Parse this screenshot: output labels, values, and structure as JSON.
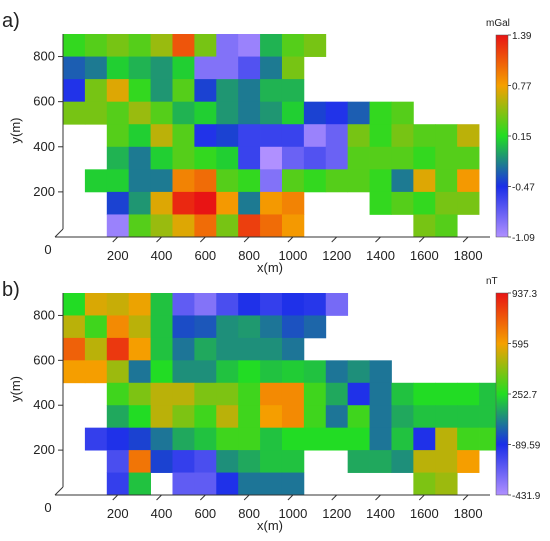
{
  "chart_data": [
    {
      "type": "heatmap",
      "panel_label": "a)",
      "xlabel": "x(m)",
      "ylabel": "y(m)",
      "origin_label": "0",
      "x_ticks": [
        200,
        400,
        600,
        800,
        1000,
        1200,
        1400,
        1600,
        1800
      ],
      "y_ticks": [
        200,
        400,
        600,
        800
      ],
      "xlim": [
        -50,
        1900
      ],
      "ylim": [
        0,
        900
      ],
      "cell_size": 100,
      "x_first_center": 0,
      "y_first_center": 850,
      "colorbar": {
        "unit": "mGal",
        "ticks": [
          "1.39",
          "0.77",
          "0.15",
          "-0.47",
          "-1.09"
        ],
        "min": -1.09,
        "max": 1.39
      },
      "rows": [
        [
          0.2,
          0.3,
          0.4,
          0.3,
          0.5,
          1.1,
          0.4,
          -0.9,
          -1.0,
          0.0,
          0.3,
          0.4
        ],
        [
          -0.3,
          -0.2,
          0.1,
          0.0,
          -0.1,
          0.1,
          -0.9,
          -0.9,
          -0.7,
          -0.2,
          0.4
        ],
        [
          -0.5,
          0.4,
          0.7,
          0.2,
          -0.1,
          0.3,
          -0.4,
          -0.1,
          -0.2,
          0.0,
          0.0
        ],
        [
          0.4,
          0.4,
          0.3,
          0.5,
          0.3,
          0.0,
          0.1,
          -0.1,
          -0.2,
          -0.1,
          0.1,
          -0.4,
          -0.5,
          -0.3,
          0.2,
          0.3
        ],
        [
          null,
          null,
          0.3,
          0.1,
          0.6,
          0.3,
          -0.5,
          -0.4,
          -0.6,
          -0.6,
          -0.6,
          -1.0,
          -0.8,
          0.4,
          0.2,
          0.4,
          0.3,
          0.3,
          0.6
        ],
        [
          null,
          null,
          0.0,
          -0.2,
          0.1,
          0.3,
          0.2,
          0.1,
          -0.6,
          -1.1,
          -0.8,
          -0.7,
          -0.8,
          0.3,
          0.3,
          0.3,
          0.2,
          0.3,
          0.3
        ],
        [
          null,
          0.1,
          0.1,
          -0.2,
          -0.2,
          0.9,
          1.0,
          0.3,
          0.2,
          -0.9,
          0.3,
          0.2,
          0.3,
          0.3,
          0.2,
          -0.2,
          0.7,
          0.3,
          0.8
        ],
        [
          null,
          null,
          -0.4,
          -0.1,
          0.7,
          1.3,
          1.4,
          0.8,
          -0.2,
          0.8,
          0.9,
          null,
          null,
          null,
          0.2,
          0.3,
          0.2,
          0.4,
          0.4
        ],
        [
          null,
          null,
          -1.0,
          0.3,
          0.5,
          0.7,
          1.0,
          0.4,
          1.2,
          1.0,
          0.8,
          null,
          null,
          null,
          null,
          null,
          0.4,
          0.3,
          null
        ]
      ]
    },
    {
      "type": "heatmap",
      "panel_label": "b)",
      "xlabel": "x(m)",
      "ylabel": "y(m)",
      "origin_label": "0",
      "x_ticks": [
        200,
        400,
        600,
        800,
        1000,
        1200,
        1400,
        1600,
        1800
      ],
      "y_ticks": [
        200,
        400,
        600,
        800
      ],
      "xlim": [
        -50,
        1900
      ],
      "ylim": [
        0,
        900
      ],
      "cell_size": 100,
      "x_first_center": 0,
      "y_first_center": 850,
      "colorbar": {
        "unit": "nT",
        "ticks": [
          "937.3",
          "595",
          "252.7",
          "-89.59",
          "-431.9"
        ],
        "min": -431.9,
        "max": 937.3
      },
      "rows": [
        [
          250,
          550,
          520,
          580,
          200,
          -250,
          -330,
          -200,
          -100,
          -150,
          -100,
          -120,
          -300
        ],
        [
          500,
          300,
          650,
          500,
          200,
          -30,
          -10,
          100,
          120,
          50,
          -20,
          20
        ],
        [
          750,
          500,
          850,
          600,
          200,
          50,
          150,
          100,
          100,
          100,
          50
        ],
        [
          600,
          600,
          450,
          50,
          250,
          100,
          100,
          200,
          250,
          200,
          220,
          200,
          50,
          100,
          50
        ],
        [
          null,
          null,
          300,
          400,
          500,
          500,
          400,
          400,
          300,
          650,
          650,
          300,
          150,
          -100,
          50,
          200,
          250,
          250,
          250,
          200
        ],
        [
          null,
          null,
          150,
          250,
          500,
          400,
          300,
          500,
          300,
          600,
          650,
          300,
          50,
          300,
          50,
          150,
          200,
          200,
          200,
          200
        ],
        [
          null,
          -150,
          -100,
          -50,
          50,
          150,
          200,
          300,
          300,
          200,
          250,
          250,
          250,
          250,
          50,
          200,
          -100,
          500,
          300,
          300
        ],
        [
          null,
          null,
          -200,
          700,
          -50,
          -150,
          -200,
          100,
          150,
          200,
          200,
          null,
          null,
          150,
          150,
          100,
          500,
          500,
          600,
          null
        ],
        [
          null,
          null,
          -150,
          200,
          null,
          -250,
          -250,
          -100,
          50,
          50,
          50,
          null,
          null,
          null,
          null,
          null,
          400,
          450,
          null
        ]
      ]
    }
  ]
}
